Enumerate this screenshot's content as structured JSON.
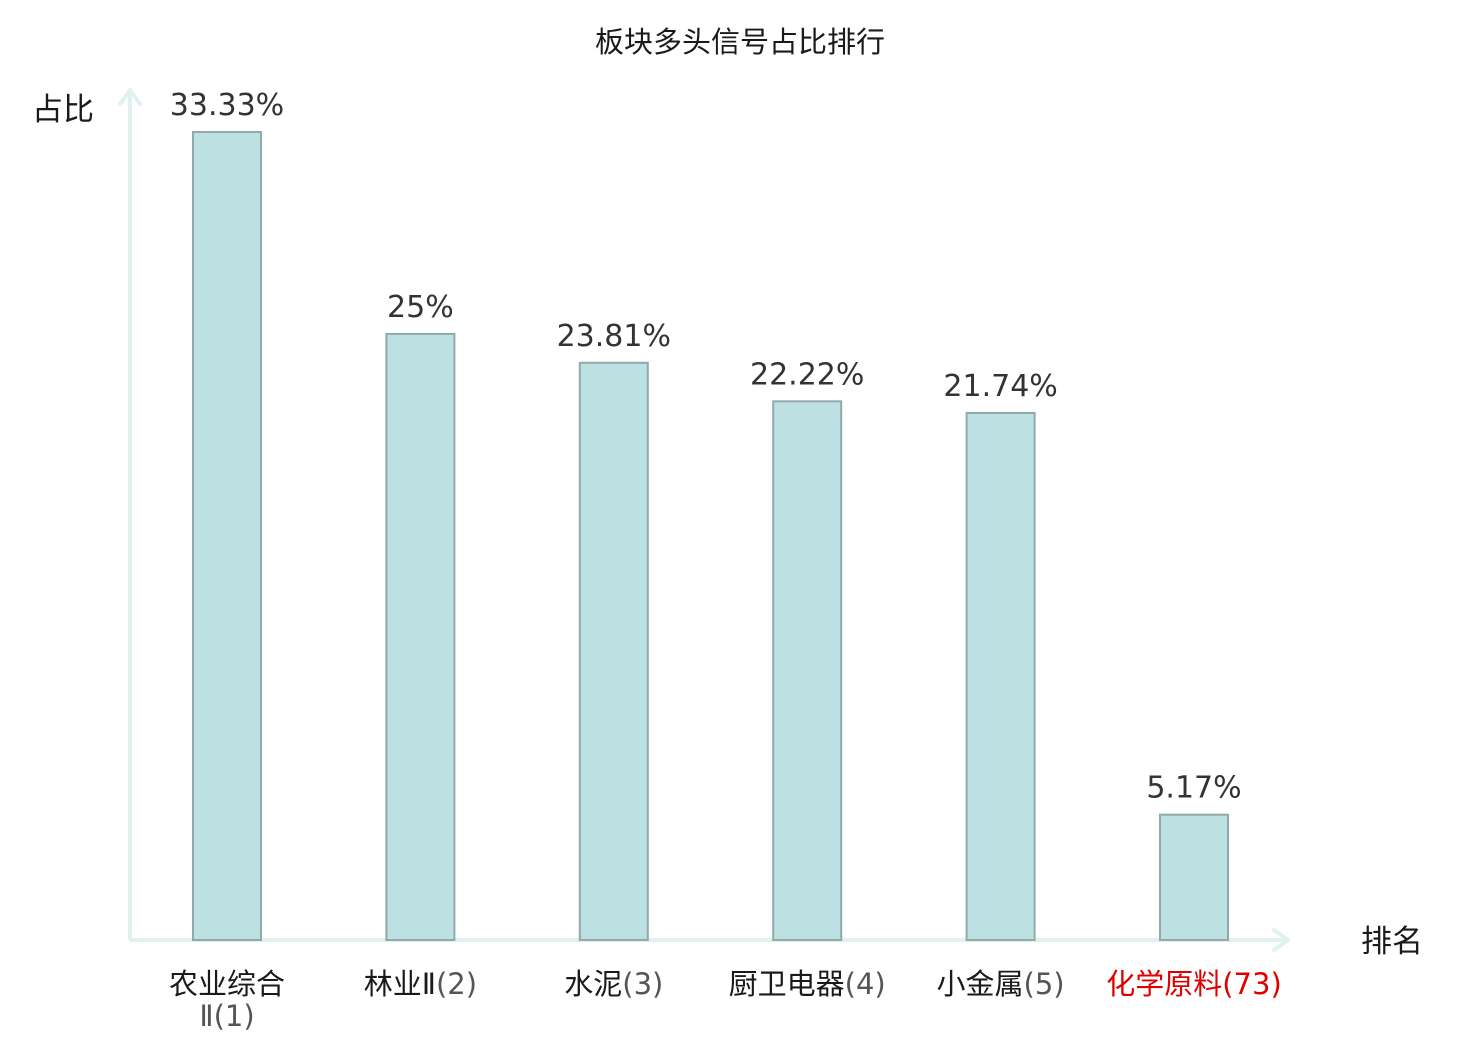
{
  "chart_data": {
    "type": "bar",
    "title": "板块多头信号占比排行",
    "xlabel": "排名",
    "ylabel": "占比",
    "ylim": [
      0,
      35
    ],
    "grid": false,
    "legend": "none",
    "categories": [
      {
        "name": "农业综合",
        "name2": "Ⅱ",
        "rank": "(1)",
        "highlight": false
      },
      {
        "name": "林业Ⅱ",
        "rank": "(2)",
        "highlight": false
      },
      {
        "name": "水泥",
        "rank": "(3)",
        "highlight": false
      },
      {
        "name": "厨卫电器",
        "rank": "(4)",
        "highlight": false
      },
      {
        "name": "小金属",
        "rank": "(5)",
        "highlight": false
      },
      {
        "name": "化学原料",
        "rank": "(73)",
        "highlight": true
      }
    ],
    "values": [
      33.33,
      25,
      23.81,
      22.22,
      21.74,
      5.17
    ],
    "value_labels": [
      "33.33%",
      "25%",
      "23.81%",
      "22.22%",
      "21.74%",
      "5.17%"
    ]
  },
  "colors": {
    "bar_fill": "#bde0e3",
    "bar_stroke": "#8faaa9",
    "axis": "#e0f2ef",
    "highlight": "#e00000",
    "text": "#1a1a1a"
  }
}
